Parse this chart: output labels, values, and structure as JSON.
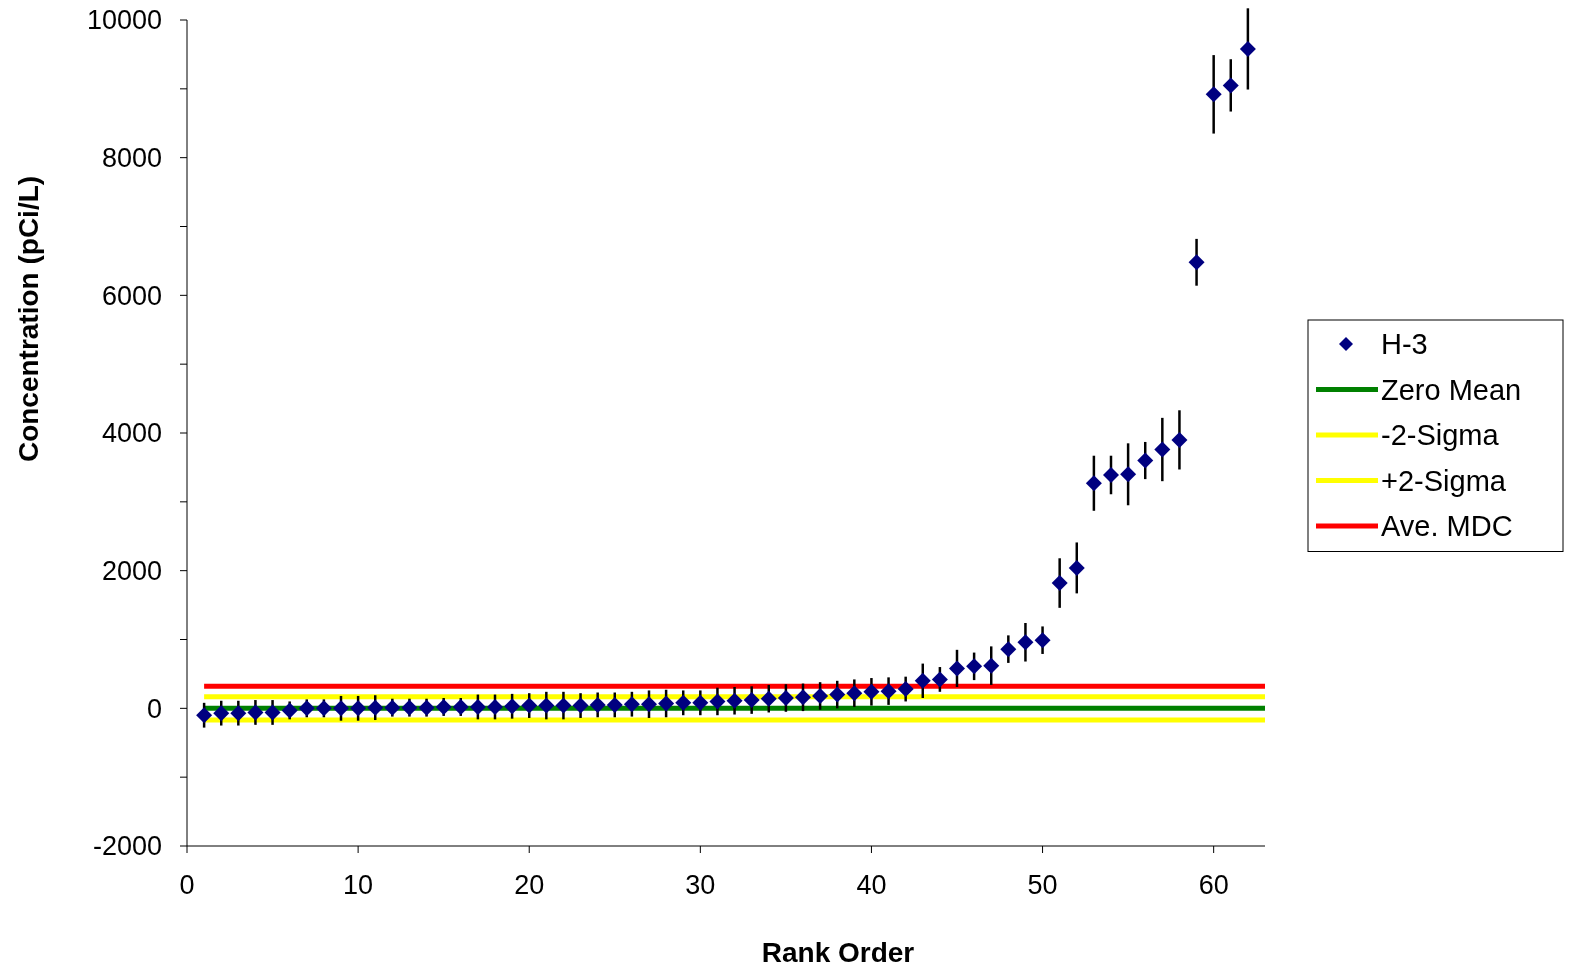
{
  "chart_data": {
    "type": "scatter",
    "xlabel": "Rank Order",
    "ylabel": "Concentration (pCi/L)",
    "xlim": [
      0,
      63
    ],
    "xticks": [
      0,
      10,
      20,
      30,
      40,
      50,
      60
    ],
    "ylim": [
      -2000,
      10000
    ],
    "yticks": [
      -2000,
      {
        "value": -1000,
        "label": null
      },
      0,
      {
        "value": 1000,
        "label": null
      },
      2000,
      {
        "value": 3000,
        "label": null
      },
      4000,
      {
        "value": 5000,
        "label": null
      },
      6000,
      {
        "value": 7000,
        "label": null
      },
      8000,
      {
        "value": 9000,
        "label": null
      },
      10000
    ],
    "grid": false,
    "legend": "right",
    "marker": "diamond",
    "series": [
      {
        "name": "H-3",
        "color": "#000080",
        "x": [
          1,
          2,
          3,
          4,
          5,
          6,
          7,
          8,
          9,
          10,
          11,
          12,
          13,
          14,
          15,
          16,
          17,
          18,
          19,
          20,
          21,
          22,
          23,
          24,
          25,
          26,
          27,
          28,
          29,
          30,
          31,
          32,
          33,
          34,
          35,
          36,
          37,
          38,
          39,
          40,
          41,
          42,
          43,
          44,
          45,
          46,
          47,
          48,
          49,
          50,
          51,
          52,
          53,
          54,
          55,
          56,
          57,
          58,
          59,
          60,
          61,
          62
        ],
        "values": [
          -100,
          -70,
          -70,
          -60,
          -60,
          -30,
          0,
          0,
          0,
          0,
          10,
          10,
          10,
          10,
          20,
          20,
          20,
          20,
          30,
          40,
          40,
          40,
          40,
          50,
          50,
          60,
          60,
          70,
          80,
          80,
          100,
          110,
          120,
          140,
          150,
          160,
          180,
          200,
          220,
          240,
          250,
          280,
          400,
          420,
          580,
          610,
          620,
          860,
          960,
          990,
          1820,
          2040,
          3270,
          3390,
          3400,
          3600,
          3760,
          3900,
          6480,
          8920,
          9050,
          9580
        ],
        "errors": [
          180,
          180,
          180,
          180,
          180,
          130,
          130,
          130,
          180,
          180,
          180,
          130,
          130,
          130,
          130,
          130,
          180,
          180,
          180,
          180,
          200,
          200,
          180,
          180,
          180,
          180,
          200,
          200,
          180,
          180,
          200,
          200,
          200,
          200,
          200,
          200,
          200,
          200,
          200,
          200,
          200,
          180,
          250,
          180,
          270,
          200,
          280,
          200,
          280,
          200,
          360,
          370,
          400,
          280,
          450,
          270,
          460,
          430,
          340,
          570,
          380,
          590
        ]
      }
    ],
    "ref_lines": [
      {
        "axis": "y",
        "value": 0,
        "label": "Zero Mean",
        "color": "#008000"
      },
      {
        "axis": "y",
        "value": -170,
        "label": "-2-Sigma",
        "color": "#ffff00"
      },
      {
        "axis": "y",
        "value": 170,
        "label": "+2-Sigma",
        "color": "#ffff00"
      },
      {
        "axis": "y",
        "value": 320,
        "label": "Ave. MDC",
        "color": "#ff0000"
      }
    ]
  }
}
